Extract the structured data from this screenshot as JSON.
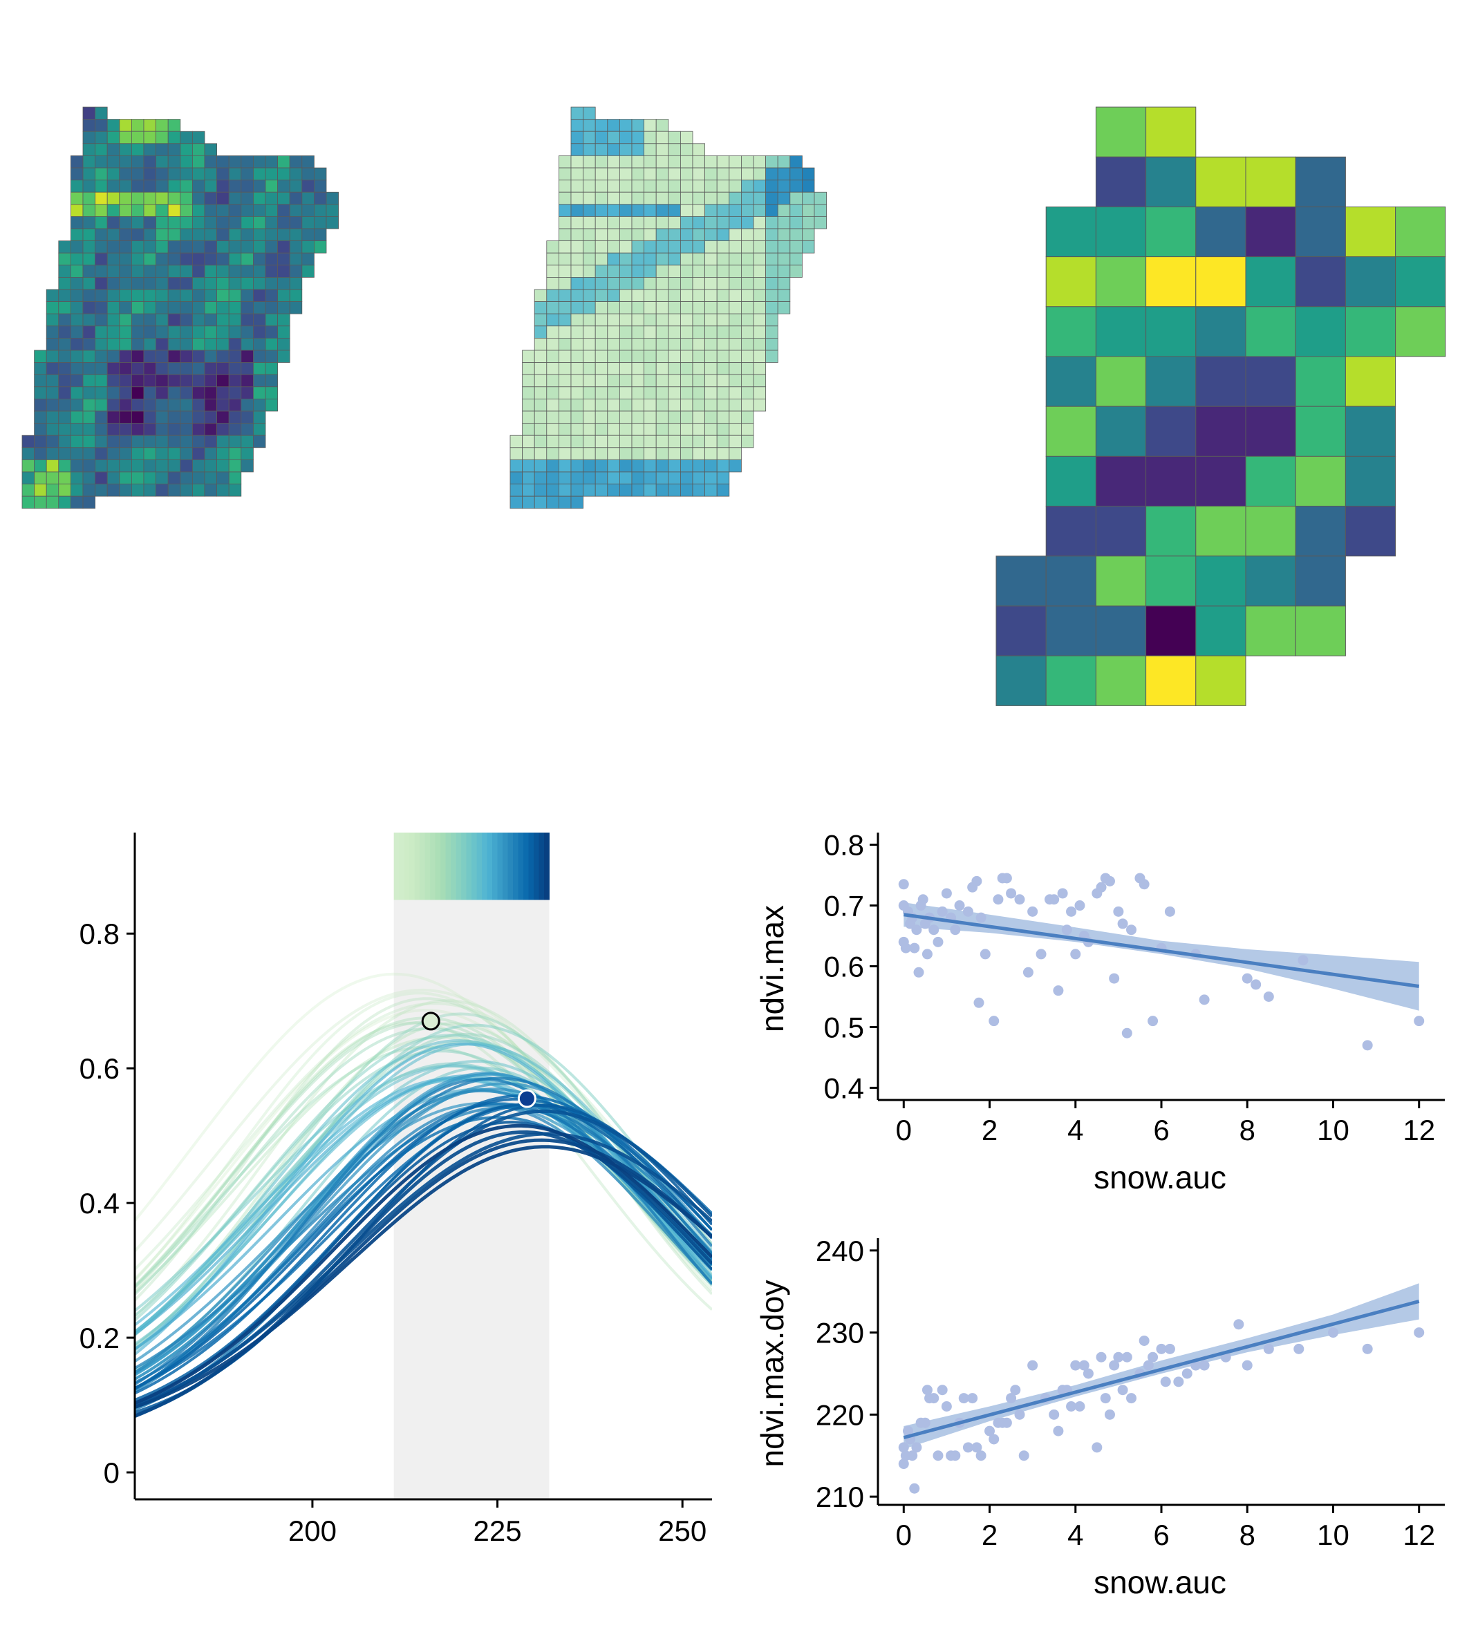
{
  "colors": {
    "viridis": [
      "#440154",
      "#482878",
      "#3e4989",
      "#31688e",
      "#26828e",
      "#1f9e89",
      "#35b779",
      "#6ece58",
      "#b5de2b",
      "#fde725"
    ],
    "gnbu": [
      "#e0f3db",
      "#ccebc5",
      "#a8ddb5",
      "#7bccc4",
      "#4eb3d3",
      "#2b8cbe",
      "#0868ac",
      "#084081"
    ],
    "point": "#aebde3",
    "fit_line": "#4a7fc1",
    "ribbon": "#a7c0e2",
    "window_shade": "#f0f0f0"
  },
  "chart_data": [
    {
      "type": "heatmap",
      "id": "map-ndvi",
      "colormap": "viridis",
      "title": "",
      "grid": {
        "cols": 26,
        "rows": 33,
        "row_extents": [
          [
            5,
            6
          ],
          [
            5,
            12
          ],
          [
            5,
            14
          ],
          [
            5,
            15
          ],
          [
            4,
            23
          ],
          [
            4,
            24
          ],
          [
            4,
            24
          ],
          [
            4,
            25
          ],
          [
            4,
            25
          ],
          [
            4,
            25
          ],
          [
            4,
            24
          ],
          [
            3,
            24
          ],
          [
            3,
            23
          ],
          [
            3,
            23
          ],
          [
            3,
            22
          ],
          [
            2,
            22
          ],
          [
            2,
            22
          ],
          [
            2,
            21
          ],
          [
            2,
            21
          ],
          [
            2,
            21
          ],
          [
            1,
            21
          ],
          [
            1,
            20
          ],
          [
            1,
            20
          ],
          [
            1,
            20
          ],
          [
            1,
            20
          ],
          [
            1,
            19
          ],
          [
            1,
            19
          ],
          [
            0,
            19
          ],
          [
            0,
            18
          ],
          [
            0,
            18
          ],
          [
            0,
            17
          ],
          [
            0,
            17
          ],
          [
            0,
            5
          ]
        ]
      }
    },
    {
      "type": "heatmap",
      "id": "map-snow",
      "colormap": "gnbu",
      "title": "",
      "grid": {
        "cols": 26,
        "rows": 33,
        "row_extents": [
          [
            5,
            6
          ],
          [
            5,
            12
          ],
          [
            5,
            14
          ],
          [
            5,
            15
          ],
          [
            4,
            23
          ],
          [
            4,
            24
          ],
          [
            4,
            24
          ],
          [
            4,
            25
          ],
          [
            4,
            25
          ],
          [
            4,
            25
          ],
          [
            4,
            24
          ],
          [
            3,
            24
          ],
          [
            3,
            23
          ],
          [
            3,
            23
          ],
          [
            3,
            22
          ],
          [
            2,
            22
          ],
          [
            2,
            22
          ],
          [
            2,
            21
          ],
          [
            2,
            21
          ],
          [
            2,
            21
          ],
          [
            1,
            21
          ],
          [
            1,
            20
          ],
          [
            1,
            20
          ],
          [
            1,
            20
          ],
          [
            1,
            20
          ],
          [
            1,
            19
          ],
          [
            1,
            19
          ],
          [
            0,
            19
          ],
          [
            0,
            18
          ],
          [
            0,
            18
          ],
          [
            0,
            17
          ],
          [
            0,
            17
          ],
          [
            0,
            5
          ]
        ]
      }
    },
    {
      "type": "heatmap",
      "id": "map-coarse",
      "colormap": "viridis",
      "title": "",
      "grid": {
        "cols": 9,
        "rows": 12,
        "values": [
          [
            null,
            null,
            7,
            8,
            null,
            null,
            null,
            null,
            null
          ],
          [
            null,
            null,
            2,
            4,
            8,
            8,
            3,
            null,
            null
          ],
          [
            null,
            5,
            5,
            6,
            3,
            1,
            3,
            8,
            7
          ],
          [
            null,
            8,
            7,
            9,
            9,
            5,
            2,
            4,
            5
          ],
          [
            null,
            6,
            5,
            5,
            4,
            6,
            5,
            6,
            7
          ],
          [
            null,
            4,
            7,
            4,
            2,
            2,
            6,
            8,
            null
          ],
          [
            null,
            7,
            4,
            2,
            1,
            1,
            6,
            4,
            null
          ],
          [
            null,
            5,
            1,
            1,
            1,
            6,
            7,
            4,
            null
          ],
          [
            null,
            2,
            2,
            6,
            7,
            7,
            3,
            2,
            null
          ],
          [
            3,
            3,
            7,
            6,
            5,
            4,
            3,
            null,
            null
          ],
          [
            2,
            3,
            3,
            0,
            5,
            7,
            7,
            null,
            null
          ],
          [
            4,
            6,
            7,
            9,
            8,
            null,
            null,
            null,
            null
          ]
        ]
      }
    },
    {
      "type": "line",
      "id": "ndvi-curves",
      "title": "",
      "xlabel": "",
      "ylabel": "",
      "xlim": [
        176,
        254
      ],
      "ylim": [
        -0.04,
        0.95
      ],
      "xticks": [
        200,
        225,
        250
      ],
      "yticks": [
        0,
        0.2,
        0.4,
        0.6,
        0.8
      ],
      "ytick_labels": [
        "0",
        "0.2",
        "0.4",
        "0.6",
        "0.8"
      ],
      "window": {
        "x_start": 211,
        "x_end": 232
      },
      "color_strip": {
        "x_start": 211,
        "x_end": 232,
        "y_bottom": 0.85,
        "y_top": 0.95
      },
      "n_curves": 60,
      "series_peak_range": [
        0.47,
        0.74
      ],
      "highlight_points": [
        {
          "x": 216,
          "y": 0.67,
          "style": "open"
        },
        {
          "x": 229,
          "y": 0.555,
          "style": "filled"
        }
      ]
    },
    {
      "type": "scatter",
      "id": "ndvi-max-vs-snow",
      "title": "",
      "xlabel": "snow.auc",
      "ylabel": "ndvi.max",
      "xlim": [
        -0.6,
        12.6
      ],
      "ylim": [
        0.38,
        0.82
      ],
      "xticks": [
        0,
        2,
        4,
        6,
        8,
        10,
        12
      ],
      "yticks": [
        0.4,
        0.5,
        0.6,
        0.7,
        0.8
      ],
      "ytick_labels": [
        "0.4",
        "0.5",
        "0.6",
        "0.7",
        "0.8"
      ],
      "fit": {
        "x0": 0,
        "y0": 0.685,
        "x1": 12,
        "y1": 0.567
      },
      "ribbon": {
        "x": [
          0,
          2,
          4,
          6,
          8,
          10,
          12
        ],
        "lower": [
          0.665,
          0.655,
          0.64,
          0.62,
          0.596,
          0.563,
          0.527
        ],
        "upper": [
          0.705,
          0.685,
          0.664,
          0.642,
          0.628,
          0.618,
          0.607
        ]
      },
      "points": [
        [
          0,
          0.735
        ],
        [
          0,
          0.7
        ],
        [
          0,
          0.64
        ],
        [
          0.05,
          0.63
        ],
        [
          0.1,
          0.69
        ],
        [
          0.15,
          0.67
        ],
        [
          0.2,
          0.68
        ],
        [
          0.25,
          0.63
        ],
        [
          0.3,
          0.66
        ],
        [
          0.35,
          0.59
        ],
        [
          0.4,
          0.7
        ],
        [
          0.45,
          0.71
        ],
        [
          0.5,
          0.67
        ],
        [
          0.55,
          0.62
        ],
        [
          0.6,
          0.68
        ],
        [
          0.7,
          0.66
        ],
        [
          0.8,
          0.64
        ],
        [
          0.9,
          0.69
        ],
        [
          1.0,
          0.72
        ],
        [
          1.1,
          0.68
        ],
        [
          1.2,
          0.66
        ],
        [
          1.3,
          0.7
        ],
        [
          1.5,
          0.69
        ],
        [
          1.6,
          0.73
        ],
        [
          1.7,
          0.74
        ],
        [
          1.75,
          0.54
        ],
        [
          1.8,
          0.68
        ],
        [
          1.9,
          0.62
        ],
        [
          2.1,
          0.51
        ],
        [
          2.2,
          0.71
        ],
        [
          2.3,
          0.745
        ],
        [
          2.4,
          0.745
        ],
        [
          2.5,
          0.72
        ],
        [
          2.7,
          0.71
        ],
        [
          2.9,
          0.59
        ],
        [
          3.0,
          0.69
        ],
        [
          3.2,
          0.62
        ],
        [
          3.4,
          0.71
        ],
        [
          3.5,
          0.71
        ],
        [
          3.6,
          0.56
        ],
        [
          3.7,
          0.72
        ],
        [
          3.8,
          0.66
        ],
        [
          3.9,
          0.69
        ],
        [
          4.0,
          0.62
        ],
        [
          4.1,
          0.7
        ],
        [
          4.2,
          0.65
        ],
        [
          4.3,
          0.64
        ],
        [
          4.5,
          0.72
        ],
        [
          4.6,
          0.73
        ],
        [
          4.7,
          0.745
        ],
        [
          4.8,
          0.74
        ],
        [
          4.9,
          0.58
        ],
        [
          5.0,
          0.69
        ],
        [
          5.1,
          0.67
        ],
        [
          5.2,
          0.49
        ],
        [
          5.3,
          0.66
        ],
        [
          5.5,
          0.745
        ],
        [
          5.6,
          0.735
        ],
        [
          5.8,
          0.51
        ],
        [
          6.0,
          0.63
        ],
        [
          6.2,
          0.69
        ],
        [
          6.8,
          0.62
        ],
        [
          7.0,
          0.545
        ],
        [
          8.0,
          0.58
        ],
        [
          8.2,
          0.57
        ],
        [
          8.5,
          0.55
        ],
        [
          9.3,
          0.61
        ],
        [
          10.8,
          0.47
        ],
        [
          12.0,
          0.51
        ]
      ]
    },
    {
      "type": "scatter",
      "id": "ndvi-max-doy-vs-snow",
      "title": "",
      "xlabel": "snow.auc",
      "ylabel": "ndvi.max.doy",
      "xlim": [
        -0.6,
        12.6
      ],
      "ylim": [
        209,
        241.5
      ],
      "xticks": [
        0,
        2,
        4,
        6,
        8,
        10,
        12
      ],
      "yticks": [
        210,
        220,
        230,
        240
      ],
      "ytick_labels": [
        "210",
        "220",
        "230",
        "240"
      ],
      "fit": {
        "x0": 0,
        "y0": 217.2,
        "x1": 12,
        "y1": 233.8
      },
      "ribbon": {
        "x": [
          0,
          2,
          4,
          6,
          8,
          10,
          12
        ],
        "lower": [
          215.8,
          219.2,
          222.2,
          225.0,
          227.6,
          229.7,
          231.6
        ],
        "upper": [
          218.6,
          221.0,
          223.6,
          226.6,
          229.3,
          232.2,
          236.0
        ]
      },
      "points": [
        [
          0,
          216
        ],
        [
          0,
          214
        ],
        [
          0.05,
          215
        ],
        [
          0.1,
          218
        ],
        [
          0.15,
          217
        ],
        [
          0.2,
          215
        ],
        [
          0.25,
          211
        ],
        [
          0.3,
          216
        ],
        [
          0.4,
          219
        ],
        [
          0.5,
          219
        ],
        [
          0.55,
          223
        ],
        [
          0.6,
          222
        ],
        [
          0.7,
          222
        ],
        [
          0.8,
          215
        ],
        [
          0.9,
          223
        ],
        [
          1.0,
          221
        ],
        [
          1.1,
          215
        ],
        [
          1.2,
          215
        ],
        [
          1.3,
          219
        ],
        [
          1.4,
          222
        ],
        [
          1.5,
          216
        ],
        [
          1.6,
          222
        ],
        [
          1.7,
          216
        ],
        [
          1.8,
          215
        ],
        [
          2.0,
          218
        ],
        [
          2.1,
          217
        ],
        [
          2.2,
          219
        ],
        [
          2.3,
          219
        ],
        [
          2.4,
          219
        ],
        [
          2.5,
          222
        ],
        [
          2.6,
          223
        ],
        [
          2.7,
          220
        ],
        [
          2.8,
          215
        ],
        [
          3.0,
          226
        ],
        [
          3.3,
          222
        ],
        [
          3.5,
          220
        ],
        [
          3.6,
          218
        ],
        [
          3.7,
          223
        ],
        [
          3.8,
          223
        ],
        [
          3.9,
          221
        ],
        [
          4.0,
          226
        ],
        [
          4.1,
          221
        ],
        [
          4.2,
          226
        ],
        [
          4.3,
          225
        ],
        [
          4.5,
          216
        ],
        [
          4.6,
          227
        ],
        [
          4.7,
          222
        ],
        [
          4.8,
          220
        ],
        [
          4.9,
          226
        ],
        [
          5.0,
          227
        ],
        [
          5.1,
          223
        ],
        [
          5.2,
          227
        ],
        [
          5.3,
          222
        ],
        [
          5.5,
          225
        ],
        [
          5.6,
          229
        ],
        [
          5.7,
          226
        ],
        [
          5.8,
          227
        ],
        [
          6.0,
          228
        ],
        [
          6.1,
          224
        ],
        [
          6.2,
          228
        ],
        [
          6.4,
          224
        ],
        [
          6.6,
          225
        ],
        [
          6.8,
          226
        ],
        [
          7.0,
          226
        ],
        [
          7.5,
          227
        ],
        [
          7.8,
          231
        ],
        [
          8.0,
          226
        ],
        [
          8.5,
          228
        ],
        [
          9.2,
          228
        ],
        [
          10.0,
          230
        ],
        [
          10.8,
          228
        ],
        [
          12.0,
          230
        ]
      ]
    }
  ],
  "ticks": {
    "curves_x": [
      "200",
      "225",
      "250"
    ],
    "scatter_x": [
      "0",
      "2",
      "4",
      "6",
      "8",
      "10",
      "12"
    ]
  }
}
